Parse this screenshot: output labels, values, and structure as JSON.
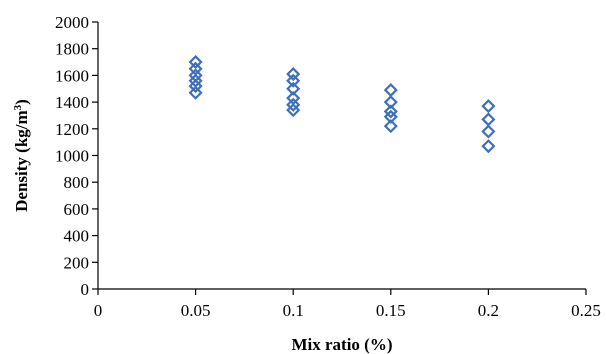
{
  "chart_data": {
    "type": "scatter",
    "title": "",
    "xlabel": "Mix ratio (%)",
    "ylabel": {
      "main": "Density (kg/m",
      "superscript": "3",
      "close": ")"
    },
    "xlim": [
      0,
      0.25
    ],
    "ylim": [
      0,
      2000
    ],
    "x_ticks": [
      "0",
      "0.05",
      "0.1",
      "0.15",
      "0.2",
      "0.25"
    ],
    "y_ticks": [
      "0",
      "200",
      "400",
      "600",
      "800",
      "1000",
      "1200",
      "1400",
      "1600",
      "1800",
      "2000"
    ],
    "x_tick_values": [
      0,
      0.05,
      0.1,
      0.15,
      0.2,
      0.25
    ],
    "y_tick_values": [
      0,
      200,
      400,
      600,
      800,
      1000,
      1200,
      1400,
      1600,
      1800,
      2000
    ],
    "grid": false,
    "legend": "none",
    "marker": "diamond",
    "marker_color": "#3f6fb5",
    "series": [
      {
        "points": [
          {
            "x": 0.05,
            "y": 1700
          },
          {
            "x": 0.05,
            "y": 1650
          },
          {
            "x": 0.05,
            "y": 1600
          },
          {
            "x": 0.05,
            "y": 1560
          },
          {
            "x": 0.05,
            "y": 1520
          },
          {
            "x": 0.05,
            "y": 1470
          },
          {
            "x": 0.1,
            "y": 1610
          },
          {
            "x": 0.1,
            "y": 1560
          },
          {
            "x": 0.1,
            "y": 1500
          },
          {
            "x": 0.1,
            "y": 1430
          },
          {
            "x": 0.1,
            "y": 1380
          },
          {
            "x": 0.1,
            "y": 1340
          },
          {
            "x": 0.15,
            "y": 1490
          },
          {
            "x": 0.15,
            "y": 1400
          },
          {
            "x": 0.15,
            "y": 1330
          },
          {
            "x": 0.15,
            "y": 1290
          },
          {
            "x": 0.15,
            "y": 1220
          },
          {
            "x": 0.2,
            "y": 1370
          },
          {
            "x": 0.2,
            "y": 1270
          },
          {
            "x": 0.2,
            "y": 1180
          },
          {
            "x": 0.2,
            "y": 1070
          }
        ]
      }
    ]
  }
}
